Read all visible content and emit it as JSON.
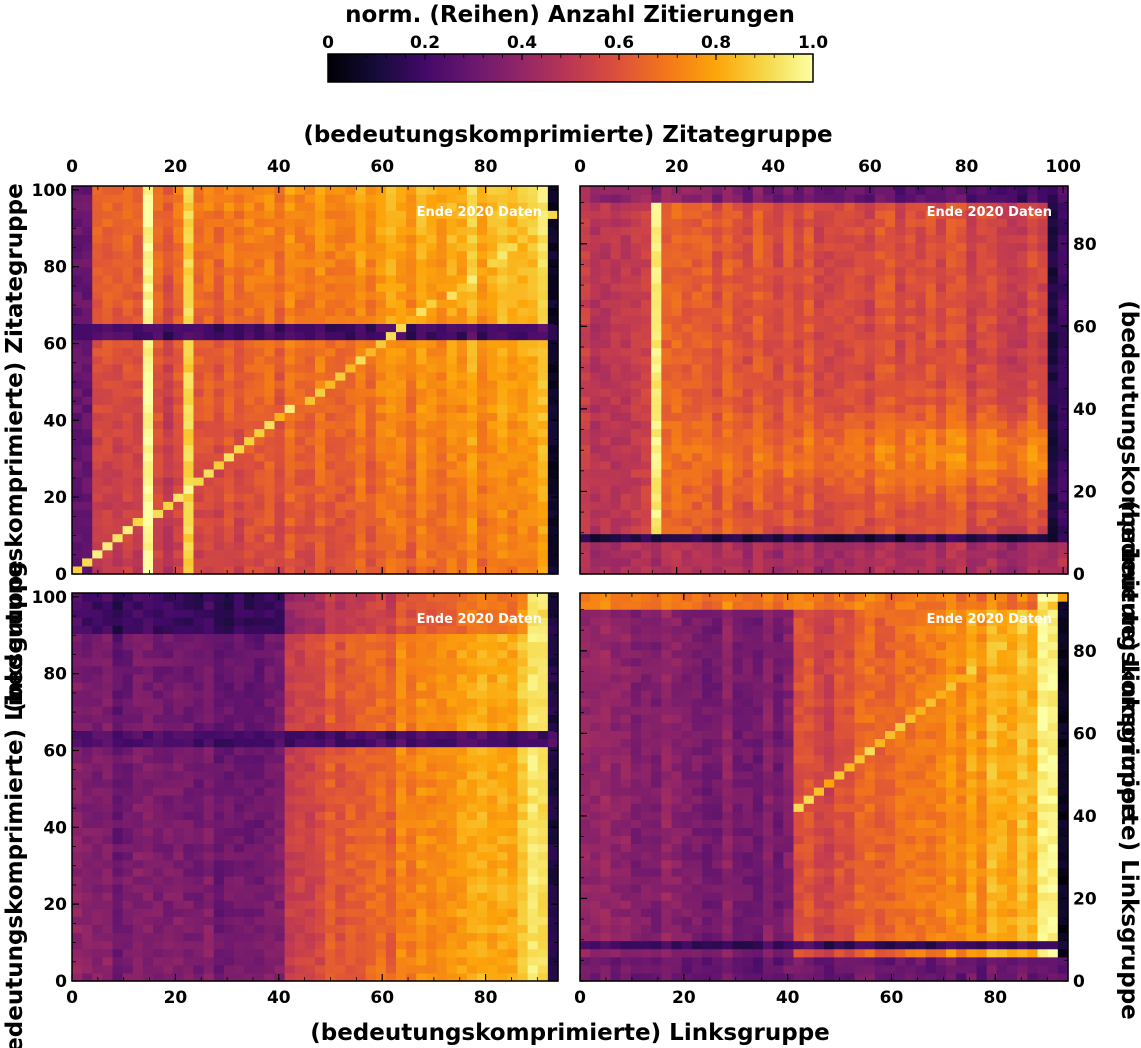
{
  "colorbar": {
    "label": "norm. (Reihen) Anzahl Zitierungen",
    "ticks": [
      "0",
      "0.2",
      "0.4",
      "0.6",
      "0.8",
      "1.0"
    ],
    "range": [
      0,
      1
    ],
    "colormap": "inferno"
  },
  "axis_titles": {
    "top": "(bedeutungskomprimierte) Zitategruppe",
    "bottom": "(bedeutungskomprimierte) Linksgruppe",
    "left_top": "(bedeutungskomprimierte) Zitategruppe",
    "left_bottom": "(bedeutungskomprimierte) Linksgruppe",
    "right_top": "(bedeutungskomprimierte) Linksgruppe",
    "right_bottom": "(bedeutungskomprimierte) Linksgruppe"
  },
  "chart_data": [
    {
      "type": "heatmap",
      "panel": "top-left",
      "annotation": "Ende 2020 Daten",
      "x_ticks": [
        "0",
        "20",
        "40",
        "60",
        "80"
      ],
      "y_ticks": [
        "0",
        "20",
        "40",
        "60",
        "80",
        "100"
      ],
      "xlim": [
        0,
        94
      ],
      "ylim": [
        0,
        101
      ],
      "features": {
        "dark_rows": [
          62.5
        ],
        "bright_cols": [
          14,
          23
        ],
        "dark_cols": [
          93
        ],
        "diagonal": true,
        "gradient": "increases with x and with y"
      }
    },
    {
      "type": "heatmap",
      "panel": "top-right",
      "annotation": "Ende 2020 Daten",
      "x_ticks": [
        "0",
        "20",
        "40",
        "60",
        "80",
        "100"
      ],
      "y_ticks": [
        "0",
        "20",
        "40",
        "60",
        "80"
      ],
      "xlim": [
        0,
        101
      ],
      "ylim": [
        0,
        94
      ],
      "features": {
        "dark_rows": [
          8
        ],
        "bright_cols": [
          15
        ],
        "dark_cols": [
          98
        ],
        "diagonal": false,
        "gradient": "bright band near y=28, darker at top-right"
      }
    },
    {
      "type": "heatmap",
      "panel": "bottom-left",
      "annotation": "Ende 2020 Daten",
      "x_ticks": [
        "0",
        "20",
        "40",
        "60",
        "80"
      ],
      "y_ticks": [
        "0",
        "20",
        "40",
        "60",
        "80",
        "100"
      ],
      "xlim": [
        0,
        94
      ],
      "ylim": [
        0,
        101
      ],
      "features": {
        "dark_rows": [
          62.5
        ],
        "bright_cols": [
          90
        ],
        "dark_cols": [
          93
        ],
        "diagonal": false,
        "gradient": "dark below x=41, bright toward x=90"
      }
    },
    {
      "type": "heatmap",
      "panel": "bottom-right",
      "annotation": "Ende 2020 Daten",
      "x_ticks": [
        "0",
        "20",
        "40",
        "60",
        "80"
      ],
      "y_ticks": [
        "0",
        "20",
        "40",
        "60",
        "80"
      ],
      "xlim": [
        0,
        94
      ],
      "ylim": [
        0,
        94
      ],
      "features": {
        "dark_rows": [
          8
        ],
        "bright_cols": [
          90
        ],
        "dark_cols": [
          93
        ],
        "diagonal": true,
        "gradient": "dark below x=41, bright toward x=90"
      }
    }
  ]
}
